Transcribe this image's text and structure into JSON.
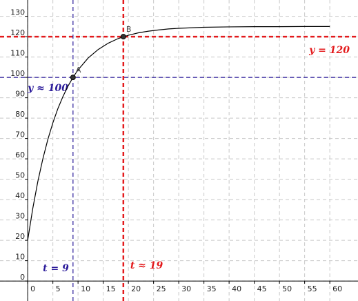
{
  "chart_data": {
    "type": "line",
    "x": [
      0,
      1,
      2,
      3,
      4,
      5,
      6,
      7,
      8,
      9,
      10,
      12,
      14,
      16,
      18,
      20,
      22,
      24,
      26,
      28,
      30,
      35,
      40,
      45,
      50,
      55,
      60
    ],
    "series": [
      {
        "color": "#000000",
        "values": [
          20,
          35.5,
          48.7,
          59.9,
          69.5,
          77.7,
          84.7,
          90.6,
          95.7,
          100,
          103.7,
          109.5,
          113.7,
          116.8,
          119.1,
          120.7,
          121.9,
          122.7,
          123.3,
          123.8,
          124.1,
          124.6,
          124.8,
          124.9,
          124.9,
          125,
          125
        ]
      }
    ],
    "xlim": [
      -5.5,
      65.6
    ],
    "ylim": [
      -9.8,
      138
    ],
    "xticks": [
      0,
      5,
      10,
      15,
      20,
      25,
      30,
      35,
      40,
      45,
      50,
      55,
      60
    ],
    "yticks": [
      0,
      10,
      20,
      30,
      40,
      50,
      60,
      70,
      80,
      90,
      100,
      110,
      120,
      130
    ],
    "grid": true,
    "hlines": [
      {
        "value": 120,
        "color": "#e31a1c",
        "label": "y = 120"
      },
      {
        "value": 100,
        "color": "#2a1a9a",
        "label": "y ≈ 100"
      }
    ],
    "vlines": [
      {
        "value": 9,
        "color": "#2a1a9a",
        "label": "t = 9"
      },
      {
        "value": 19,
        "color": "#e31a1c",
        "label": "t ≈ 19"
      }
    ],
    "points": [
      {
        "name": "A",
        "x": 9,
        "y": 100
      },
      {
        "name": "B",
        "x": 19,
        "y": 120
      }
    ]
  }
}
